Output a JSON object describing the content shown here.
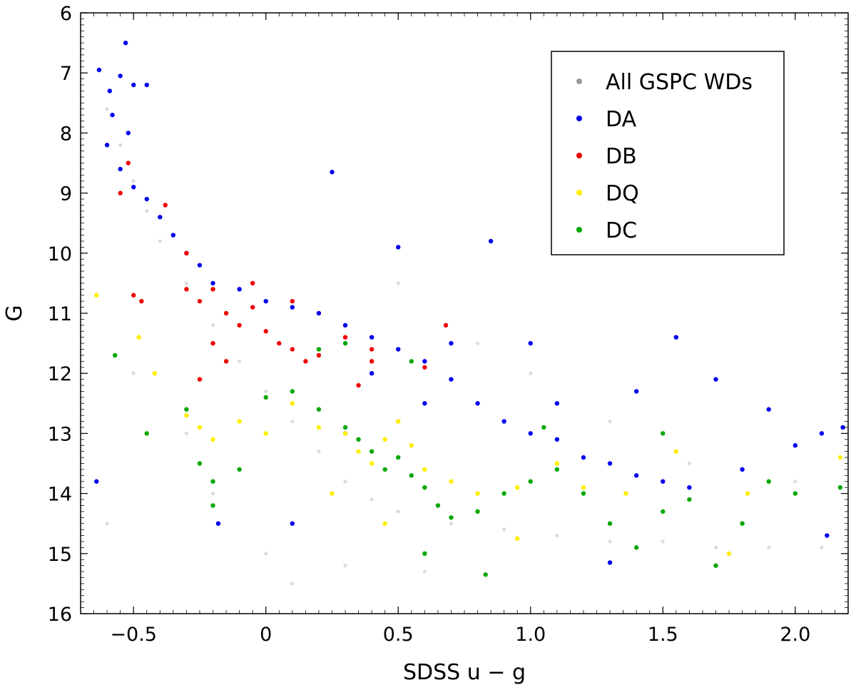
{
  "chart_data": {
    "type": "scatter",
    "title": "",
    "xlabel": "SDSS u − g",
    "ylabel": "G",
    "xlim": [
      -0.7,
      2.2
    ],
    "ylim": [
      16,
      6
    ],
    "y_inverted": true,
    "xticks": [
      -0.5,
      0,
      0.5,
      1.0,
      1.5,
      2.0
    ],
    "xtick_labels": [
      "−0.5",
      "0",
      "0.5",
      "1.0",
      "1.5",
      "2.0"
    ],
    "yticks": [
      6,
      7,
      8,
      9,
      10,
      11,
      12,
      13,
      14,
      15,
      16
    ],
    "ytick_labels": [
      "6",
      "7",
      "8",
      "9",
      "10",
      "11",
      "12",
      "13",
      "14",
      "15",
      "16"
    ],
    "grid": false,
    "legend_position": "top-right",
    "series": [
      {
        "name": "All GSPC WDs",
        "color": "#9a9a9a",
        "points": [
          [
            -0.6,
            7.6
          ],
          [
            -0.55,
            8.2
          ],
          [
            -0.5,
            8.8
          ],
          [
            -0.45,
            9.3
          ],
          [
            -0.4,
            9.8
          ],
          [
            -0.3,
            10.5
          ],
          [
            -0.2,
            11.2
          ],
          [
            -0.1,
            11.8
          ],
          [
            0.0,
            12.3
          ],
          [
            0.1,
            12.8
          ],
          [
            0.2,
            13.3
          ],
          [
            0.3,
            13.8
          ],
          [
            0.4,
            14.1
          ],
          [
            0.5,
            14.3
          ],
          [
            0.7,
            14.5
          ],
          [
            0.9,
            14.6
          ],
          [
            1.1,
            14.7
          ],
          [
            1.3,
            14.8
          ],
          [
            1.5,
            14.8
          ],
          [
            1.7,
            14.9
          ],
          [
            1.9,
            14.9
          ],
          [
            2.1,
            14.9
          ],
          [
            -0.3,
            13.0
          ],
          [
            -0.2,
            14.0
          ],
          [
            0.0,
            15.0
          ],
          [
            0.3,
            15.2
          ],
          [
            0.6,
            15.3
          ],
          [
            0.5,
            10.5
          ],
          [
            0.8,
            11.5
          ],
          [
            1.0,
            12.0
          ],
          [
            1.3,
            12.8
          ],
          [
            1.6,
            13.5
          ],
          [
            2.0,
            13.8
          ],
          [
            -0.6,
            14.5
          ],
          [
            -0.5,
            12.0
          ],
          [
            0.1,
            15.5
          ]
        ]
      },
      {
        "name": "DA",
        "color": "#0000ee",
        "points": [
          [
            -0.63,
            6.95
          ],
          [
            -0.59,
            7.3
          ],
          [
            -0.55,
            7.05
          ],
          [
            -0.53,
            6.5
          ],
          [
            -0.5,
            7.2
          ],
          [
            -0.45,
            7.2
          ],
          [
            -0.58,
            7.7
          ],
          [
            -0.52,
            8.0
          ],
          [
            -0.6,
            8.2
          ],
          [
            -0.55,
            8.6
          ],
          [
            -0.5,
            8.9
          ],
          [
            -0.45,
            9.1
          ],
          [
            -0.4,
            9.4
          ],
          [
            -0.35,
            9.7
          ],
          [
            -0.3,
            10.0
          ],
          [
            -0.25,
            10.2
          ],
          [
            -0.2,
            10.5
          ],
          [
            -0.1,
            10.6
          ],
          [
            0.0,
            10.8
          ],
          [
            0.1,
            10.9
          ],
          [
            0.2,
            11.0
          ],
          [
            0.3,
            11.2
          ],
          [
            0.4,
            11.4
          ],
          [
            0.5,
            11.6
          ],
          [
            0.6,
            11.8
          ],
          [
            0.7,
            12.1
          ],
          [
            0.8,
            12.5
          ],
          [
            0.9,
            12.8
          ],
          [
            1.0,
            13.0
          ],
          [
            1.1,
            13.1
          ],
          [
            1.2,
            13.4
          ],
          [
            1.3,
            13.5
          ],
          [
            1.4,
            13.7
          ],
          [
            1.5,
            13.8
          ],
          [
            1.6,
            13.9
          ],
          [
            1.8,
            13.6
          ],
          [
            2.0,
            13.2
          ],
          [
            2.1,
            13.0
          ],
          [
            2.18,
            12.9
          ],
          [
            0.25,
            8.65
          ],
          [
            0.5,
            9.9
          ],
          [
            0.85,
            9.8
          ],
          [
            1.0,
            11.5
          ],
          [
            1.55,
            11.4
          ],
          [
            0.1,
            14.5
          ],
          [
            -0.18,
            14.5
          ],
          [
            -0.64,
            13.8
          ],
          [
            1.3,
            15.15
          ],
          [
            2.12,
            14.7
          ],
          [
            0.3,
            13.0
          ],
          [
            0.6,
            12.5
          ],
          [
            0.4,
            12.0
          ],
          [
            0.7,
            11.5
          ],
          [
            1.1,
            12.5
          ],
          [
            1.4,
            12.3
          ],
          [
            1.7,
            12.1
          ],
          [
            1.9,
            12.6
          ]
        ]
      },
      {
        "name": "DB",
        "color": "#ee0000",
        "points": [
          [
            -0.52,
            8.5
          ],
          [
            -0.55,
            9.0
          ],
          [
            -0.38,
            9.2
          ],
          [
            -0.3,
            10.0
          ],
          [
            -0.3,
            10.6
          ],
          [
            -0.25,
            10.8
          ],
          [
            -0.2,
            10.6
          ],
          [
            -0.15,
            11.0
          ],
          [
            -0.1,
            11.2
          ],
          [
            -0.05,
            10.9
          ],
          [
            0.0,
            11.3
          ],
          [
            0.05,
            11.5
          ],
          [
            0.1,
            11.6
          ],
          [
            0.15,
            11.8
          ],
          [
            0.2,
            11.7
          ],
          [
            -0.2,
            11.5
          ],
          [
            -0.15,
            11.8
          ],
          [
            -0.25,
            12.1
          ],
          [
            -0.05,
            10.5
          ],
          [
            0.1,
            10.8
          ],
          [
            0.3,
            11.4
          ],
          [
            0.4,
            11.8
          ],
          [
            0.6,
            11.9
          ],
          [
            0.35,
            12.2
          ],
          [
            -0.5,
            10.7
          ],
          [
            -0.47,
            10.8
          ],
          [
            0.68,
            11.2
          ],
          [
            0.4,
            11.6
          ]
        ]
      },
      {
        "name": "DQ",
        "color": "#ffee00",
        "points": [
          [
            -0.64,
            10.7
          ],
          [
            -0.48,
            11.4
          ],
          [
            -0.42,
            12.0
          ],
          [
            -0.3,
            12.7
          ],
          [
            -0.25,
            12.9
          ],
          [
            -0.2,
            13.1
          ],
          [
            -0.1,
            12.8
          ],
          [
            0.0,
            13.0
          ],
          [
            0.1,
            12.5
          ],
          [
            0.2,
            12.9
          ],
          [
            0.3,
            13.0
          ],
          [
            0.35,
            13.3
          ],
          [
            0.4,
            13.5
          ],
          [
            0.45,
            13.1
          ],
          [
            0.5,
            12.8
          ],
          [
            0.55,
            13.2
          ],
          [
            0.6,
            13.6
          ],
          [
            0.7,
            13.8
          ],
          [
            0.8,
            14.0
          ],
          [
            0.95,
            13.9
          ],
          [
            1.1,
            13.5
          ],
          [
            1.2,
            13.9
          ],
          [
            1.36,
            14.0
          ],
          [
            1.55,
            13.3
          ],
          [
            1.75,
            15.0
          ],
          [
            1.82,
            14.0
          ],
          [
            2.17,
            13.4
          ],
          [
            0.25,
            14.0
          ],
          [
            0.45,
            14.5
          ],
          [
            0.95,
            14.75
          ],
          [
            -0.45,
            13.0
          ]
        ]
      },
      {
        "name": "DC",
        "color": "#00a800",
        "points": [
          [
            -0.57,
            11.7
          ],
          [
            -0.45,
            13.0
          ],
          [
            -0.3,
            12.6
          ],
          [
            -0.25,
            13.5
          ],
          [
            -0.2,
            13.8
          ],
          [
            -0.1,
            13.6
          ],
          [
            0.0,
            12.4
          ],
          [
            0.1,
            12.3
          ],
          [
            0.2,
            12.6
          ],
          [
            0.3,
            12.9
          ],
          [
            0.35,
            13.1
          ],
          [
            0.4,
            13.3
          ],
          [
            0.45,
            13.6
          ],
          [
            0.5,
            13.4
          ],
          [
            0.55,
            13.7
          ],
          [
            0.6,
            13.9
          ],
          [
            0.65,
            14.2
          ],
          [
            0.7,
            14.4
          ],
          [
            0.8,
            14.3
          ],
          [
            0.9,
            14.0
          ],
          [
            1.0,
            13.8
          ],
          [
            1.1,
            13.6
          ],
          [
            1.2,
            14.0
          ],
          [
            1.3,
            14.5
          ],
          [
            1.4,
            14.9
          ],
          [
            1.5,
            14.3
          ],
          [
            1.6,
            14.1
          ],
          [
            1.7,
            15.2
          ],
          [
            1.8,
            14.5
          ],
          [
            1.9,
            13.8
          ],
          [
            2.0,
            14.0
          ],
          [
            2.17,
            13.9
          ],
          [
            0.2,
            11.6
          ],
          [
            0.3,
            11.5
          ],
          [
            0.55,
            11.8
          ],
          [
            0.83,
            15.35
          ],
          [
            1.5,
            13.0
          ],
          [
            1.05,
            12.9
          ],
          [
            0.6,
            15.0
          ],
          [
            -0.2,
            14.2
          ]
        ]
      }
    ]
  }
}
